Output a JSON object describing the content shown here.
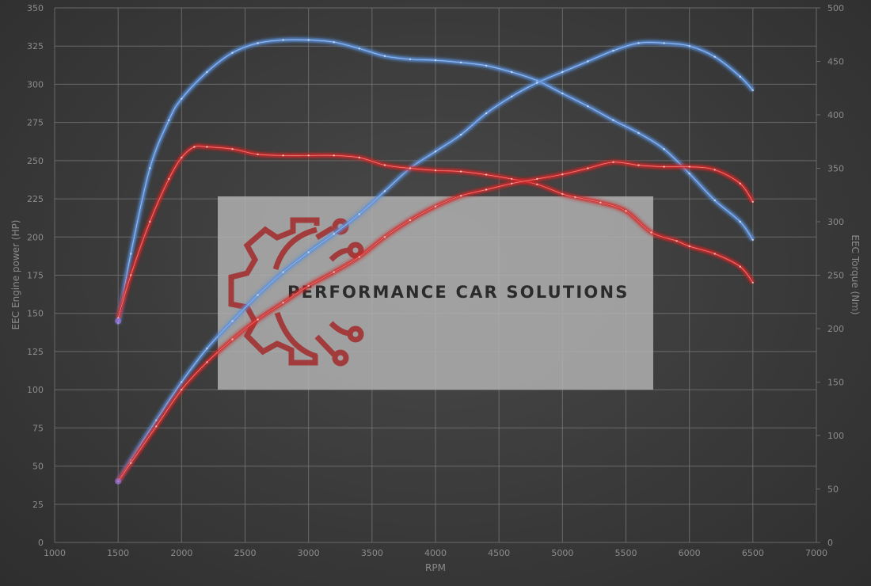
{
  "chart_data": {
    "type": "line",
    "xlabel": "RPM",
    "ylabel_left": "EEC Engine power (HP)",
    "ylabel_right": "EEC Torque (Nm)",
    "xlim": [
      1000,
      7000
    ],
    "ylim_left": [
      0,
      350
    ],
    "ylim_right": [
      0,
      500
    ],
    "x_ticks": [
      "1000",
      "1500",
      "2000",
      "2500",
      "3000",
      "3500",
      "4000",
      "4500",
      "5000",
      "5500",
      "6000",
      "6500",
      "7000"
    ],
    "y_left_ticks": [
      "0",
      "25",
      "50",
      "75",
      "100",
      "125",
      "150",
      "175",
      "200",
      "225",
      "250",
      "275",
      "300",
      "325",
      "350"
    ],
    "y_right_ticks": [
      "0",
      "50",
      "100",
      "150",
      "200",
      "250",
      "300",
      "350",
      "400",
      "450",
      "500"
    ],
    "grid": true,
    "series": [
      {
        "axis": "right",
        "color": "#5b8fd9",
        "x": [
          1500,
          1600,
          1750,
          1900,
          2000,
          2200,
          2400,
          2600,
          2800,
          3000,
          3200,
          3400,
          3600,
          3800,
          4000,
          4200,
          4400,
          4600,
          4800,
          5000,
          5200,
          5400,
          5600,
          5800,
          6000,
          6200,
          6400,
          6500
        ],
        "values": [
          205,
          270,
          350,
          395,
          415,
          440,
          458,
          467,
          470,
          470,
          468,
          462,
          455,
          452,
          451,
          449,
          446,
          440,
          432,
          420,
          408,
          395,
          383,
          368,
          345,
          320,
          300,
          283
        ]
      },
      {
        "axis": "left",
        "color": "#5b8fd9",
        "x": [
          1500,
          1600,
          1800,
          2000,
          2200,
          2400,
          2600,
          2800,
          3000,
          3200,
          3400,
          3600,
          3800,
          4000,
          4200,
          4400,
          4600,
          4800,
          5000,
          5200,
          5400,
          5600,
          5800,
          6000,
          6200,
          6400,
          6500
        ],
        "values": [
          40,
          54,
          80,
          105,
          127,
          145,
          162,
          177,
          190,
          202,
          215,
          230,
          245,
          256,
          267,
          281,
          292,
          301,
          308,
          315,
          322,
          327,
          327,
          325,
          318,
          305,
          296
        ]
      },
      {
        "axis": "right",
        "color": "#d22a2a",
        "x": [
          1500,
          1600,
          1750,
          1900,
          2000,
          2100,
          2200,
          2400,
          2600,
          2800,
          3000,
          3200,
          3400,
          3600,
          3800,
          4000,
          4200,
          4400,
          4600,
          4800,
          5000,
          5100,
          5300,
          5500,
          5700,
          5900,
          6000,
          6200,
          6400,
          6500
        ],
        "values": [
          210,
          250,
          300,
          340,
          360,
          370,
          370,
          368,
          363,
          362,
          362,
          362,
          360,
          353,
          350,
          348,
          347,
          344,
          340,
          335,
          326,
          323,
          318,
          310,
          290,
          282,
          277,
          270,
          258,
          243
        ]
      },
      {
        "axis": "left",
        "color": "#d22a2a",
        "x": [
          1500,
          1600,
          1800,
          2000,
          2200,
          2400,
          2600,
          2800,
          3000,
          3200,
          3400,
          3600,
          3800,
          4000,
          4200,
          4400,
          4600,
          4800,
          5000,
          5200,
          5400,
          5600,
          5800,
          6000,
          6200,
          6400,
          6500
        ],
        "values": [
          40,
          52,
          76,
          100,
          118,
          133,
          146,
          157,
          168,
          177,
          187,
          200,
          211,
          220,
          227,
          231,
          235,
          238,
          241,
          245,
          249,
          247,
          246,
          246,
          244,
          235,
          223
        ]
      }
    ]
  },
  "logo": {
    "text": "PERFORMANCE CAR SOLUTIONS",
    "gear_color": "#a33232",
    "panel_color": "#b4b4b4"
  }
}
